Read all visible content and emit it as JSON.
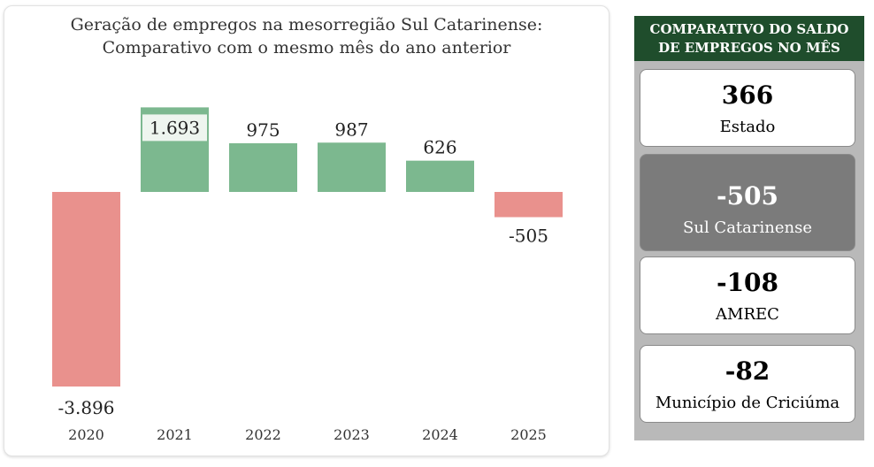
{
  "chart": {
    "title_line1": "Geração de empregos na mesorregião Sul Catarinense:",
    "title_line2": "Comparativo com o mesmo mês do ano anterior"
  },
  "chart_data": {
    "type": "bar",
    "title": "Geração de empregos na mesorregião Sul Catarinense: Comparativo com o mesmo mês do ano anterior",
    "categories": [
      "2020",
      "2021",
      "2022",
      "2023",
      "2024",
      "2025"
    ],
    "values": [
      -3896,
      1693,
      975,
      987,
      626,
      -505
    ],
    "value_labels": [
      "-3.896",
      "1.693",
      "975",
      "987",
      "626",
      "-505"
    ],
    "xlabel": "",
    "ylabel": "",
    "grid": false,
    "colors": {
      "positive": "#7cb88f",
      "negative": "#e9918d"
    }
  },
  "panel": {
    "header_line1": "COMPARATIVO DO SALDO",
    "header_line2": "DE EMPREGOS NO MÊS",
    "cards": [
      {
        "value": "366",
        "label": "Estado"
      },
      {
        "value": "-505",
        "label": "Sul Catarinense"
      },
      {
        "value": "-108",
        "label": "AMREC"
      },
      {
        "value": "-82",
        "label": "Município de Criciúma"
      }
    ],
    "colors": {
      "header_bg": "#1f4d2c",
      "highlight_card": "#7b7b7b",
      "panel_bg": "#b9b9b9"
    }
  }
}
